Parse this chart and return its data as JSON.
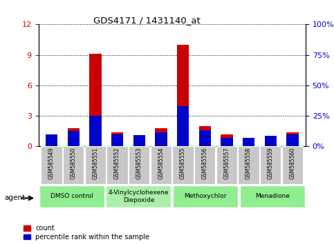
{
  "title": "GDS4171 / 1431140_at",
  "samples": [
    "GSM585549",
    "GSM585550",
    "GSM585551",
    "GSM585552",
    "GSM585553",
    "GSM585554",
    "GSM585555",
    "GSM585556",
    "GSM585557",
    "GSM585558",
    "GSM585559",
    "GSM585560"
  ],
  "red_values": [
    1.0,
    1.8,
    9.1,
    1.4,
    0.8,
    1.8,
    10.0,
    2.0,
    1.2,
    0.8,
    0.5,
    1.4
  ],
  "blue_values": [
    10.0,
    12.5,
    25.0,
    10.0,
    9.0,
    11.5,
    33.0,
    13.0,
    7.0,
    7.0,
    8.5,
    10.0
  ],
  "ylim_left": [
    0,
    12
  ],
  "ylim_right": [
    0,
    100
  ],
  "yticks_left": [
    0,
    3,
    6,
    9,
    12
  ],
  "yticks_right": [
    0,
    25,
    50,
    75,
    100
  ],
  "ytick_labels_left": [
    "0",
    "3",
    "6",
    "9",
    "12"
  ],
  "ytick_labels_right": [
    "0%",
    "25%",
    "50%",
    "75%",
    "100%"
  ],
  "red_color": "#cc0000",
  "blue_color": "#0000cc",
  "agents": [
    {
      "label": "DMSO control",
      "start": 0,
      "end": 3,
      "color": "#90ee90"
    },
    {
      "label": "4-Vinylcyclohexene\nDiepoxide",
      "start": 3,
      "end": 6,
      "color": "#aaf0aa"
    },
    {
      "label": "Methoxychlor",
      "start": 6,
      "end": 9,
      "color": "#90ee90"
    },
    {
      "label": "Menadione",
      "start": 9,
      "end": 12,
      "color": "#90ee90"
    }
  ],
  "agent_label": "agent",
  "legend_labels": [
    "count",
    "percentile rank within the sample"
  ],
  "plot_bg": "#ffffff",
  "grid_color": "#000000",
  "title_color": "#000000",
  "left_tick_color": "#cc0000",
  "right_tick_color": "#0000cc",
  "sample_box_bg": "#c8c8c8"
}
